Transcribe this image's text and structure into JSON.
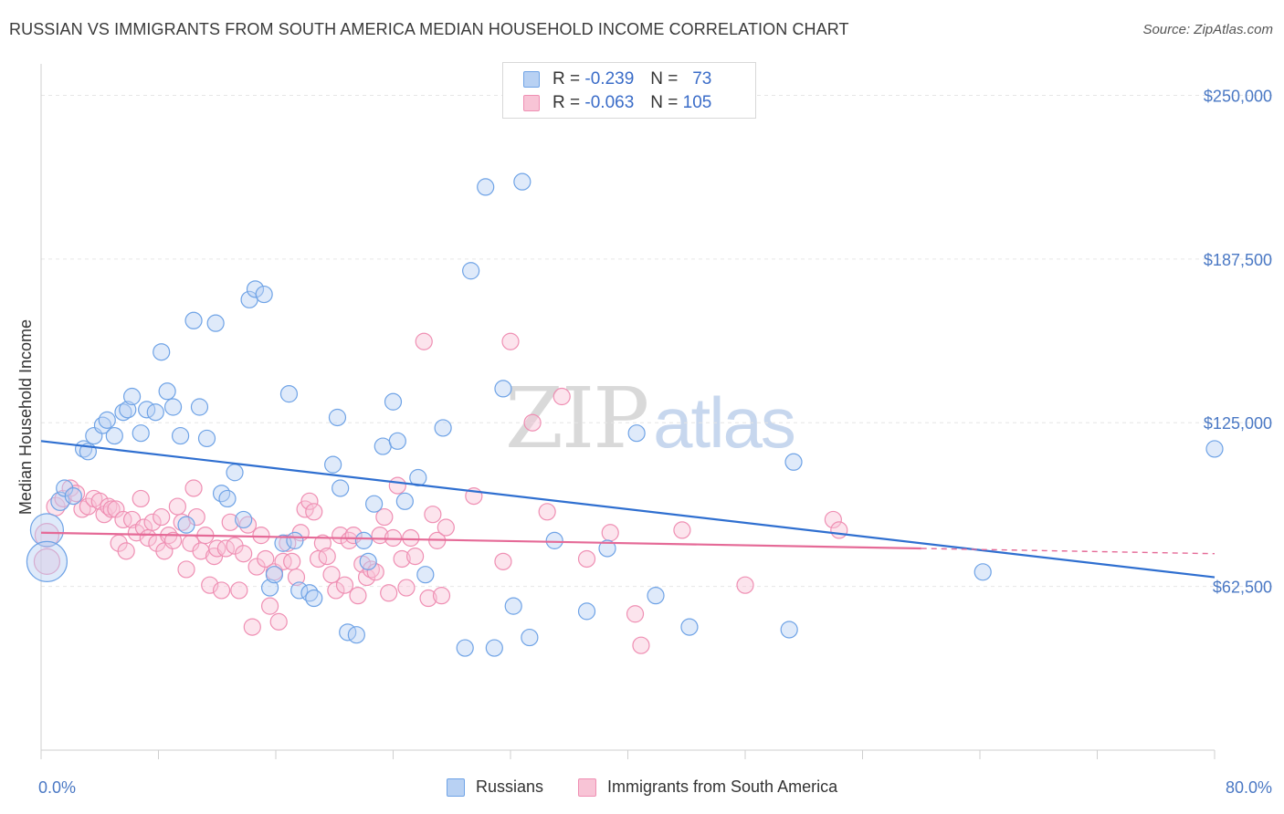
{
  "header": {
    "title": "RUSSIAN VS IMMIGRANTS FROM SOUTH AMERICA MEDIAN HOUSEHOLD INCOME CORRELATION CHART",
    "source": "Source: ZipAtlas.com"
  },
  "watermark": {
    "zip": "ZIP",
    "atlas": "atlas"
  },
  "legend_top": {
    "rows": [
      {
        "r_label": "R =",
        "r_value": "-0.239",
        "n_label": "N =",
        "n_value": "73"
      },
      {
        "r_label": "R =",
        "r_value": "-0.063",
        "n_label": "N =",
        "n_value": "105"
      }
    ]
  },
  "legend_bottom": {
    "items": [
      "Russians",
      "Immigrants from South America"
    ]
  },
  "colors": {
    "blue": "#6fa3e6",
    "blue_fill": "#b8d1f3",
    "blue_line": "#2f6fd0",
    "pink": "#ef8fb3",
    "pink_fill": "#f8c4d6",
    "pink_line": "#e56a97",
    "tick_text": "#4a78c4",
    "grid": "#e6e6e6"
  },
  "chart_data": {
    "type": "scatter",
    "title": "RUSSIAN VS IMMIGRANTS FROM SOUTH AMERICA MEDIAN HOUSEHOLD INCOME CORRELATION CHART",
    "xlabel": "",
    "ylabel": "Median Household Income",
    "xlim": [
      0,
      80
    ],
    "ylim": [
      0,
      262000
    ],
    "x_tick_labels": [
      "0.0%",
      "80.0%"
    ],
    "y_ticks": [
      62500,
      125000,
      187500,
      250000
    ],
    "y_tick_labels": [
      "$62,500",
      "$125,000",
      "$187,500",
      "$250,000"
    ],
    "grid": true,
    "legend_placement": "top-center",
    "series": [
      {
        "name": "Russians",
        "r": -0.239,
        "n": 73,
        "trend": {
          "x": [
            0,
            80
          ],
          "y": [
            118000,
            66000
          ]
        },
        "points": [
          [
            0.4,
            84000,
            18
          ],
          [
            0.4,
            72000,
            22
          ],
          [
            1.3,
            95000,
            10
          ],
          [
            1.6,
            100000,
            9
          ],
          [
            2.2,
            97000,
            9
          ],
          [
            2.9,
            115000,
            9
          ],
          [
            3.2,
            114000,
            9
          ],
          [
            3.6,
            120000,
            9
          ],
          [
            4.2,
            124000,
            9
          ],
          [
            4.5,
            126000,
            9
          ],
          [
            5.0,
            120000,
            9
          ],
          [
            5.6,
            129000,
            9
          ],
          [
            5.9,
            130000,
            9
          ],
          [
            6.2,
            135000,
            9
          ],
          [
            6.8,
            121000,
            9
          ],
          [
            7.2,
            130000,
            9
          ],
          [
            7.8,
            129000,
            9
          ],
          [
            8.2,
            152000,
            9
          ],
          [
            8.6,
            137000,
            9
          ],
          [
            9.0,
            131000,
            9
          ],
          [
            9.5,
            120000,
            9
          ],
          [
            9.9,
            86000,
            9
          ],
          [
            10.4,
            164000,
            9
          ],
          [
            10.8,
            131000,
            9
          ],
          [
            11.3,
            119000,
            9
          ],
          [
            11.9,
            163000,
            9
          ],
          [
            12.3,
            98000,
            9
          ],
          [
            12.7,
            96000,
            9
          ],
          [
            13.2,
            106000,
            9
          ],
          [
            13.8,
            88000,
            9
          ],
          [
            14.2,
            172000,
            9
          ],
          [
            14.6,
            176000,
            9
          ],
          [
            15.2,
            174000,
            9
          ],
          [
            15.6,
            62000,
            9
          ],
          [
            15.9,
            67000,
            9
          ],
          [
            16.5,
            79000,
            9
          ],
          [
            16.9,
            136000,
            9
          ],
          [
            17.3,
            80000,
            9
          ],
          [
            17.6,
            61000,
            9
          ],
          [
            18.3,
            60000,
            9
          ],
          [
            18.6,
            58000,
            9
          ],
          [
            19.9,
            109000,
            9
          ],
          [
            20.2,
            127000,
            9
          ],
          [
            20.4,
            100000,
            9
          ],
          [
            20.9,
            45000,
            9
          ],
          [
            21.5,
            44000,
            9
          ],
          [
            22.0,
            80000,
            9
          ],
          [
            22.3,
            72000,
            9
          ],
          [
            22.7,
            94000,
            9
          ],
          [
            23.3,
            116000,
            9
          ],
          [
            24.0,
            133000,
            9
          ],
          [
            24.3,
            118000,
            9
          ],
          [
            24.8,
            95000,
            9
          ],
          [
            25.7,
            104000,
            9
          ],
          [
            26.2,
            67000,
            9
          ],
          [
            27.4,
            123000,
            9
          ],
          [
            28.9,
            39000,
            9
          ],
          [
            29.3,
            183000,
            9
          ],
          [
            30.3,
            215000,
            9
          ],
          [
            30.9,
            39000,
            9
          ],
          [
            31.5,
            138000,
            9
          ],
          [
            32.2,
            55000,
            9
          ],
          [
            32.8,
            217000,
            9
          ],
          [
            33.3,
            43000,
            9
          ],
          [
            35.0,
            80000,
            9
          ],
          [
            37.2,
            53000,
            9
          ],
          [
            38.6,
            77000,
            9
          ],
          [
            40.6,
            121000,
            9
          ],
          [
            41.9,
            59000,
            9
          ],
          [
            44.2,
            47000,
            9
          ],
          [
            51.0,
            46000,
            9
          ],
          [
            51.3,
            110000,
            9
          ],
          [
            64.2,
            68000,
            9
          ],
          [
            80.0,
            115000,
            9
          ]
        ]
      },
      {
        "name": "Immigrants from South America",
        "r": -0.063,
        "n": 105,
        "trend": {
          "x": [
            0,
            60
          ],
          "y": [
            83000,
            77000
          ]
        },
        "trend_dashed": {
          "x": [
            60,
            80
          ],
          "y": [
            77000,
            75000
          ]
        },
        "points": [
          [
            0.4,
            72000,
            14
          ],
          [
            0.4,
            82000,
            13
          ],
          [
            1.0,
            93000,
            10
          ],
          [
            1.5,
            96000,
            9
          ],
          [
            2.0,
            100000,
            9
          ],
          [
            2.4,
            98000,
            9
          ],
          [
            2.8,
            92000,
            9
          ],
          [
            3.2,
            93000,
            9
          ],
          [
            3.6,
            96000,
            9
          ],
          [
            4.0,
            95000,
            9
          ],
          [
            4.3,
            90000,
            9
          ],
          [
            4.6,
            93000,
            9
          ],
          [
            4.8,
            92000,
            9
          ],
          [
            5.1,
            92000,
            9
          ],
          [
            5.3,
            79000,
            9
          ],
          [
            5.6,
            88000,
            9
          ],
          [
            5.8,
            76000,
            9
          ],
          [
            6.2,
            88000,
            9
          ],
          [
            6.5,
            83000,
            9
          ],
          [
            6.8,
            96000,
            9
          ],
          [
            7.0,
            85000,
            9
          ],
          [
            7.3,
            81000,
            9
          ],
          [
            7.6,
            87000,
            9
          ],
          [
            7.9,
            79000,
            9
          ],
          [
            8.2,
            89000,
            9
          ],
          [
            8.4,
            76000,
            9
          ],
          [
            8.7,
            82000,
            9
          ],
          [
            9.0,
            80000,
            9
          ],
          [
            9.3,
            93000,
            9
          ],
          [
            9.6,
            87000,
            9
          ],
          [
            9.9,
            69000,
            9
          ],
          [
            10.2,
            79000,
            9
          ],
          [
            10.4,
            100000,
            9
          ],
          [
            10.6,
            89000,
            9
          ],
          [
            10.9,
            76000,
            9
          ],
          [
            11.2,
            82000,
            9
          ],
          [
            11.5,
            63000,
            9
          ],
          [
            11.8,
            74000,
            9
          ],
          [
            12.0,
            77000,
            9
          ],
          [
            12.3,
            61000,
            9
          ],
          [
            12.6,
            77000,
            9
          ],
          [
            12.9,
            87000,
            9
          ],
          [
            13.2,
            78000,
            9
          ],
          [
            13.5,
            61000,
            9
          ],
          [
            13.8,
            75000,
            9
          ],
          [
            14.1,
            86000,
            9
          ],
          [
            14.4,
            47000,
            9
          ],
          [
            14.7,
            70000,
            9
          ],
          [
            15.0,
            82000,
            9
          ],
          [
            15.3,
            73000,
            9
          ],
          [
            15.6,
            55000,
            9
          ],
          [
            15.9,
            68000,
            9
          ],
          [
            16.2,
            49000,
            9
          ],
          [
            16.5,
            72000,
            9
          ],
          [
            16.8,
            79000,
            9
          ],
          [
            17.1,
            72000,
            9
          ],
          [
            17.4,
            66000,
            9
          ],
          [
            17.7,
            83000,
            9
          ],
          [
            18.0,
            92000,
            9
          ],
          [
            18.3,
            95000,
            9
          ],
          [
            18.6,
            91000,
            9
          ],
          [
            18.9,
            73000,
            9
          ],
          [
            19.2,
            79000,
            9
          ],
          [
            19.5,
            74000,
            9
          ],
          [
            19.8,
            67000,
            9
          ],
          [
            20.1,
            61000,
            9
          ],
          [
            20.4,
            82000,
            9
          ],
          [
            20.7,
            63000,
            9
          ],
          [
            21.0,
            80000,
            9
          ],
          [
            21.3,
            82000,
            9
          ],
          [
            21.6,
            59000,
            9
          ],
          [
            21.9,
            71000,
            9
          ],
          [
            22.2,
            66000,
            9
          ],
          [
            22.5,
            69000,
            9
          ],
          [
            22.8,
            68000,
            9
          ],
          [
            23.1,
            82000,
            9
          ],
          [
            23.4,
            89000,
            9
          ],
          [
            23.7,
            60000,
            9
          ],
          [
            24.0,
            81000,
            9
          ],
          [
            24.3,
            101000,
            9
          ],
          [
            24.6,
            73000,
            9
          ],
          [
            24.9,
            62000,
            9
          ],
          [
            25.2,
            81000,
            9
          ],
          [
            25.5,
            74000,
            9
          ],
          [
            26.1,
            156000,
            9
          ],
          [
            26.4,
            58000,
            9
          ],
          [
            26.7,
            90000,
            9
          ],
          [
            27.0,
            80000,
            9
          ],
          [
            27.3,
            59000,
            9
          ],
          [
            27.6,
            85000,
            9
          ],
          [
            29.5,
            97000,
            9
          ],
          [
            31.5,
            72000,
            9
          ],
          [
            32.0,
            156000,
            9
          ],
          [
            33.5,
            125000,
            9
          ],
          [
            34.5,
            91000,
            9
          ],
          [
            35.5,
            135000,
            9
          ],
          [
            37.2,
            73000,
            9
          ],
          [
            38.8,
            83000,
            9
          ],
          [
            40.5,
            52000,
            9
          ],
          [
            40.9,
            40000,
            9
          ],
          [
            43.7,
            84000,
            9
          ],
          [
            48.0,
            63000,
            9
          ],
          [
            54.0,
            88000,
            9
          ],
          [
            54.4,
            84000,
            9
          ]
        ]
      }
    ]
  }
}
